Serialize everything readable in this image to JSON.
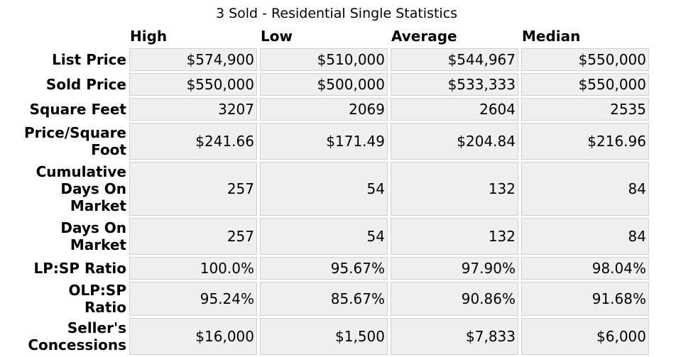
{
  "title": "3 Sold - Residential Single Statistics",
  "columns": [
    "High",
    "Low",
    "Average",
    "Median"
  ],
  "rows": [
    {
      "label": "List Price",
      "values": [
        "$574,900",
        "$510,000",
        "$544,967",
        "$550,000"
      ]
    },
    {
      "label": "Sold Price",
      "values": [
        "$550,000",
        "$500,000",
        "$533,333",
        "$550,000"
      ]
    },
    {
      "label": "Square Feet",
      "values": [
        "3207",
        "2069",
        "2604",
        "2535"
      ]
    },
    {
      "label": "Price/Square Foot",
      "values": [
        "$241.66",
        "$171.49",
        "$204.84",
        "$216.96"
      ]
    },
    {
      "label": "Cumulative Days On Market",
      "values": [
        "257",
        "54",
        "132",
        "84"
      ]
    },
    {
      "label": "Days On Market",
      "values": [
        "257",
        "54",
        "132",
        "84"
      ]
    },
    {
      "label": "LP:SP Ratio",
      "values": [
        "100.0%",
        "95.67%",
        "97.90%",
        "98.04%"
      ]
    },
    {
      "label": "OLP:SP Ratio",
      "values": [
        "95.24%",
        "85.67%",
        "90.86%",
        "91.68%"
      ]
    },
    {
      "label": "Seller's Concessions",
      "values": [
        "$16,000",
        "$1,500",
        "$7,833",
        "$6,000"
      ]
    }
  ]
}
